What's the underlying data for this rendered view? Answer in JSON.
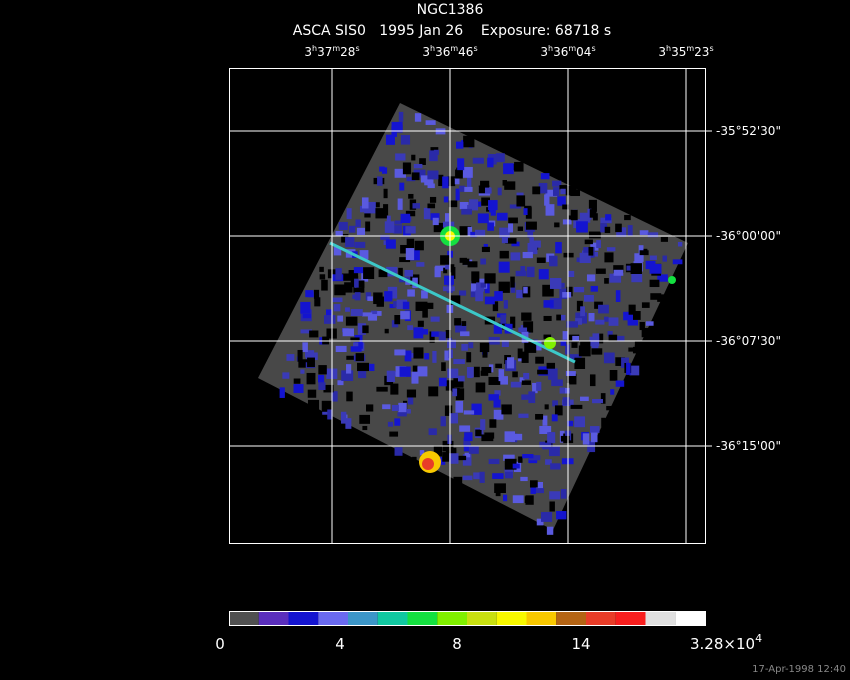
{
  "title": "NGC1386",
  "subtitle": "ASCA SIS0   1995 Jan 26    Exposure: 68718 s",
  "ra_labels": [
    [
      "3",
      "h",
      "37",
      "m",
      "28",
      "s"
    ],
    [
      "3",
      "h",
      "36",
      "m",
      "46",
      "s"
    ],
    [
      "3",
      "h",
      "36",
      "m",
      "04",
      "s"
    ],
    [
      "3",
      "h",
      "35",
      "m",
      "23",
      "s"
    ]
  ],
  "dec_labels": [
    "-35°52'30\"",
    "-36°00'00\"",
    "-36°07'30\"",
    "-36°15'00\""
  ],
  "colorbar": {
    "colors": [
      "#505050",
      "#5a2ebc",
      "#1414d0",
      "#6a6af0",
      "#3c96c8",
      "#10c8a0",
      "#14e040",
      "#80f000",
      "#c8e010",
      "#f8f800",
      "#f8c800",
      "#b46414",
      "#e83c28",
      "#f81e1e",
      "#e0e0e0",
      "#ffffff"
    ],
    "labels": [
      "0",
      "4",
      "8",
      "14"
    ],
    "max_label": "3.28×10",
    "max_exponent": "4"
  },
  "timestamp": "17-Apr-1998 12:40"
}
